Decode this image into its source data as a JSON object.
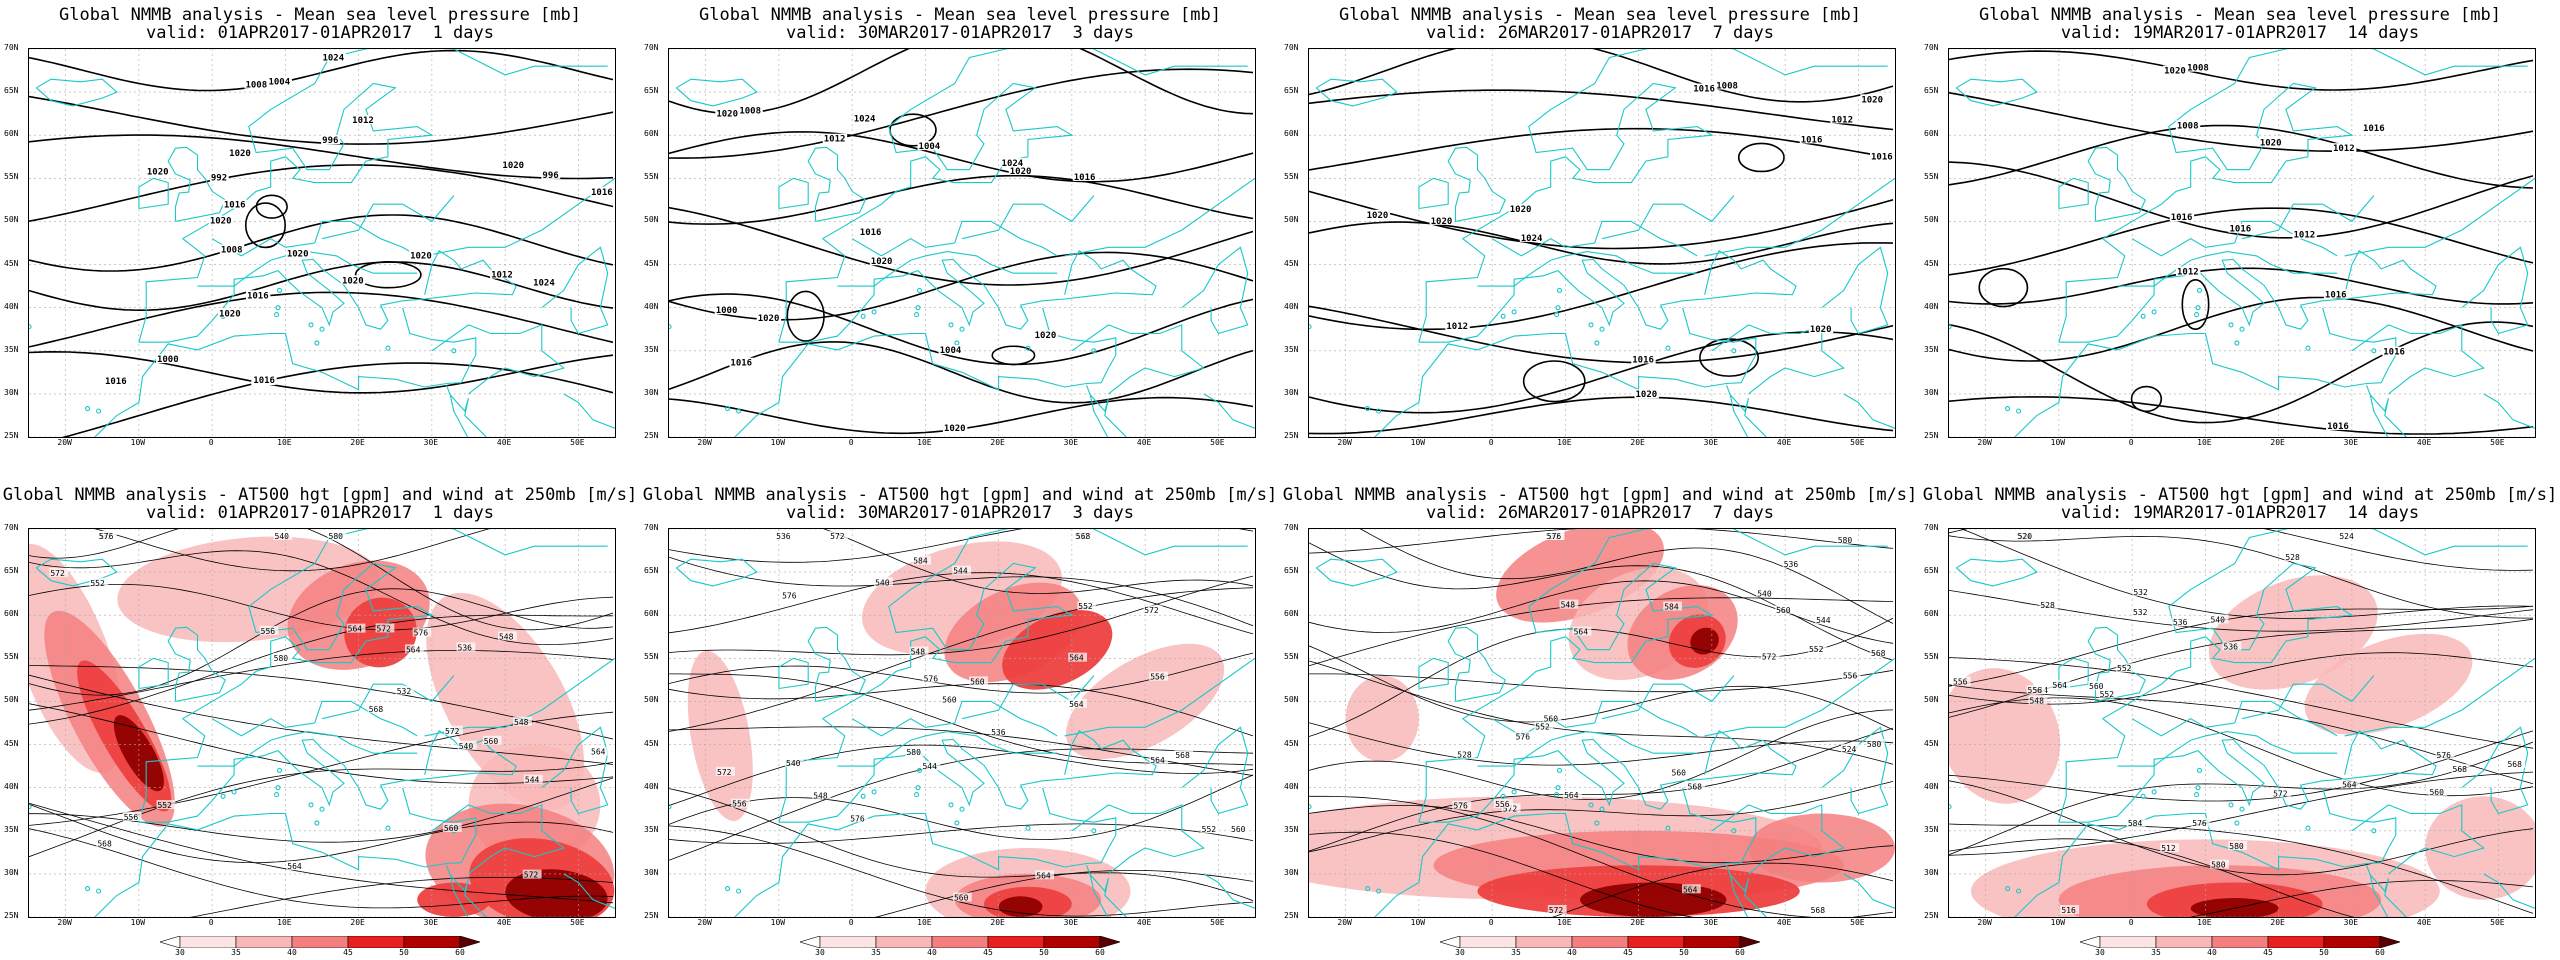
{
  "panels": [
    {
      "id": "p1",
      "row": 0,
      "col": 0,
      "type": "mslp",
      "title": "Global NMMB analysis - Mean sea level pressure [mb]",
      "subtitle": "valid: 01APR2017-01APR2017  1 days",
      "contour_labels": [
        "1004",
        "996",
        "996",
        "992",
        "1008",
        "1012",
        "1016",
        "1000",
        "1004",
        "1008",
        "1012",
        "1016",
        "1020",
        "1020",
        "1024",
        "1020",
        "1016",
        "1016",
        "1024",
        "1020",
        "1020",
        "1016",
        "1020",
        "1020",
        "1020"
      ]
    },
    {
      "id": "p2",
      "row": 0,
      "col": 1,
      "type": "mslp",
      "title": "Global NMMB analysis - Mean sea level pressure [mb]",
      "subtitle": "valid: 30MAR2017-01APR2017  3 days",
      "contour_labels": [
        "1008",
        "1012",
        "1004",
        "1016",
        "1020",
        "1000",
        "1004",
        "1016",
        "1020",
        "1020",
        "1024",
        "1024",
        "1020",
        "1016",
        "1020",
        "1020"
      ]
    },
    {
      "id": "p3",
      "row": 0,
      "col": 2,
      "type": "mslp",
      "title": "Global NMMB analysis - Mean sea level pressure [mb]",
      "subtitle": "valid: 26MAR2017-01APR2017  7 days",
      "contour_labels": [
        "1008",
        "1012",
        "1016",
        "1020",
        "1024",
        "1012",
        "1016",
        "1020",
        "1020",
        "1016",
        "1020",
        "1016",
        "1020",
        "1020"
      ]
    },
    {
      "id": "p4",
      "row": 0,
      "col": 3,
      "type": "mslp",
      "title": "Global NMMB analysis - Mean sea level pressure [mb]",
      "subtitle": "valid: 19MAR2017-01APR2017  14 days",
      "contour_labels": [
        "1008",
        "1012",
        "1008",
        "1012",
        "1016",
        "1012",
        "1016",
        "1016",
        "1016",
        "1020",
        "1016",
        "1020",
        "1016"
      ]
    },
    {
      "id": "p5",
      "row": 1,
      "col": 0,
      "type": "z500",
      "title": "Global NMMB analysis - AT500 hgt [gpm] and wind at 250mb [m/s]",
      "subtitle": "valid: 01APR2017-01APR2017  1 days",
      "contour_labels": [
        "532",
        "540",
        "548",
        "552",
        "556",
        "564",
        "536",
        "532",
        "540",
        "544",
        "548",
        "552",
        "556",
        "560",
        "564",
        "568",
        "572",
        "576",
        "580",
        "564",
        "572",
        "580",
        "576",
        "572",
        "568",
        "560",
        "564",
        "572"
      ]
    },
    {
      "id": "p6",
      "row": 1,
      "col": 1,
      "type": "z500",
      "title": "Global NMMB analysis - AT500 hgt [gpm] and wind at 250mb [m/s]",
      "subtitle": "valid: 30MAR2017-01APR2017  3 days",
      "contour_labels": [
        "532",
        "536",
        "540",
        "544",
        "548",
        "552",
        "556",
        "560",
        "564",
        "536",
        "540",
        "544",
        "548",
        "552",
        "556",
        "560",
        "564",
        "568",
        "572",
        "576",
        "584",
        "576",
        "572",
        "564",
        "560",
        "568",
        "564",
        "572",
        "580",
        "576",
        "560"
      ]
    },
    {
      "id": "p7",
      "row": 1,
      "col": 2,
      "type": "z500",
      "title": "Global NMMB analysis - AT500 hgt [gpm] and wind at 250mb [m/s]",
      "subtitle": "valid: 26MAR2017-01APR2017  7 days",
      "contour_labels": [
        "532",
        "536",
        "540",
        "544",
        "548",
        "552",
        "556",
        "560",
        "524",
        "528",
        "564",
        "568",
        "572",
        "576",
        "564",
        "568",
        "572",
        "576",
        "580",
        "584",
        "560",
        "564",
        "568",
        "572",
        "576",
        "580",
        "552",
        "556",
        "560"
      ]
    },
    {
      "id": "p8",
      "row": 1,
      "col": 3,
      "type": "z500",
      "title": "Global NMMB analysis - AT500 hgt [gpm] and wind at 250mb [m/s]",
      "subtitle": "valid: 19MAR2017-01APR2017  14 days",
      "contour_labels": [
        "524",
        "528",
        "532",
        "536",
        "540",
        "544",
        "548",
        "552",
        "556",
        "560",
        "564",
        "568",
        "576",
        "580",
        "584",
        "512",
        "516",
        "520",
        "524",
        "528",
        "532",
        "536",
        "552",
        "556",
        "560",
        "564",
        "568",
        "572",
        "576",
        "580"
      ]
    }
  ],
  "axes": {
    "lat_labels": [
      "70N",
      "65N",
      "60N",
      "55N",
      "50N",
      "45N",
      "40N",
      "35N",
      "30N",
      "25N"
    ],
    "lon_labels": [
      "20W",
      "10W",
      "0",
      "10E",
      "20E",
      "30E",
      "40E",
      "50E"
    ]
  },
  "colorbar": {
    "ticks": [
      "30",
      "35",
      "40",
      "45",
      "50",
      "60"
    ],
    "colors": [
      "#ffffff",
      "#fde4e4",
      "#f9b8b8",
      "#f47f7f",
      "#e82020",
      "#b00000",
      "#5a0000"
    ]
  },
  "colors": {
    "contour": "#000000",
    "coast": "#19c8c8",
    "jet_light": "#f9b8b8",
    "jet_mid": "#ee4040",
    "jet_dark": "#900000"
  }
}
